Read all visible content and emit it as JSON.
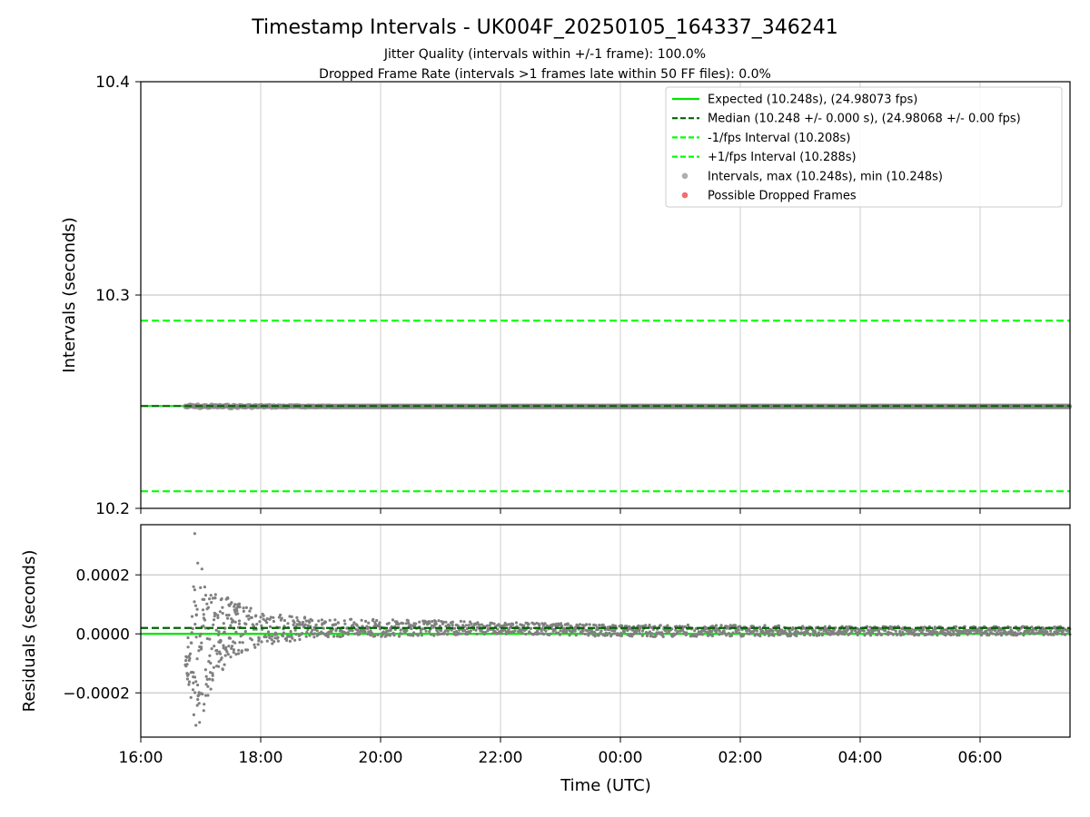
{
  "chart_data": [
    {
      "type": "scatter",
      "title": "Timestamp Intervals - UK004F_20250105_164337_346241",
      "subtitle_lines": [
        "Jitter Quality (intervals within +/-1 frame): 100.0%",
        "Dropped Frame Rate (intervals >1 frames late within 50 FF files): 0.0%"
      ],
      "ylabel": "Intervals (seconds)",
      "ylim": [
        10.2,
        10.4
      ],
      "yticks": [
        "10.2",
        "10.3",
        "10.4"
      ],
      "grid": true,
      "legend_placement": "top-right",
      "legend": [
        {
          "label": "Expected (10.248s), (24.98073 fps)",
          "style": "solid",
          "color": "#00e400"
        },
        {
          "label": "Median (10.248 +/- 0.000 s), (24.98068 +/- 0.00 fps)",
          "style": "dashed",
          "color": "#006400"
        },
        {
          "label": "-1/fps Interval (10.208s)",
          "style": "dashed",
          "color": "#00ff00"
        },
        {
          "label": "+1/fps Interval (10.288s)",
          "style": "dashed",
          "color": "#00ff00"
        },
        {
          "label": "Intervals, max (10.248s), min (10.248s)",
          "style": "marker",
          "color": "#a0a0a0"
        },
        {
          "label": "Possible Dropped Frames",
          "style": "marker",
          "color": "#ef5555"
        }
      ],
      "lines": {
        "expected": 10.248,
        "median": 10.248,
        "minus_1fps": 10.208,
        "plus_1fps": 10.288
      },
      "intervals": {
        "value": 10.248,
        "x_start": "16:45",
        "x_end": "07:30"
      }
    },
    {
      "type": "scatter",
      "ylabel": "Residuals (seconds)",
      "xlabel": "Time (UTC)",
      "ylim": [
        -0.00035,
        0.00037
      ],
      "yticks": [
        "−0.0002",
        "0.0000",
        "0.0002"
      ],
      "xticks": [
        "16:00",
        "18:00",
        "20:00",
        "22:00",
        "00:00",
        "02:00",
        "04:00",
        "06:00"
      ],
      "xlim": [
        "16:00",
        "07:30"
      ],
      "grid": true,
      "lines": {
        "expected": 0.0,
        "median": 2e-05
      },
      "residual_envelope": [
        {
          "t": "16:45",
          "center": -0.0001,
          "spread": 1e-05
        },
        {
          "t": "16:55",
          "center": -6e-05,
          "spread": 0.00025
        },
        {
          "t": "17:10",
          "center": -2e-05,
          "spread": 0.00017
        },
        {
          "t": "17:30",
          "center": 2e-05,
          "spread": 0.0001
        },
        {
          "t": "18:00",
          "center": 2e-05,
          "spread": 6e-05
        },
        {
          "t": "19:00",
          "center": 2e-05,
          "spread": 3e-05
        },
        {
          "t": "20:00",
          "center": 2e-05,
          "spread": 3e-05
        },
        {
          "t": "22:00",
          "center": 2e-05,
          "spread": 2e-05
        },
        {
          "t": "00:00",
          "center": 1e-05,
          "spread": 2e-05
        },
        {
          "t": "02:00",
          "center": 1e-05,
          "spread": 2e-05
        },
        {
          "t": "04:00",
          "center": 1e-05,
          "spread": 1.5e-05
        },
        {
          "t": "07:30",
          "center": 1e-05,
          "spread": 1.5e-05
        }
      ]
    }
  ],
  "colors": {
    "expected": "#00e400",
    "median": "#006400",
    "bounds": "#00ff00",
    "points": "#808080",
    "points_legend": "#a0a0a0",
    "dropped": "#ef5555",
    "grid": "#cccccc",
    "grid_strong": "#bbbbbb"
  }
}
